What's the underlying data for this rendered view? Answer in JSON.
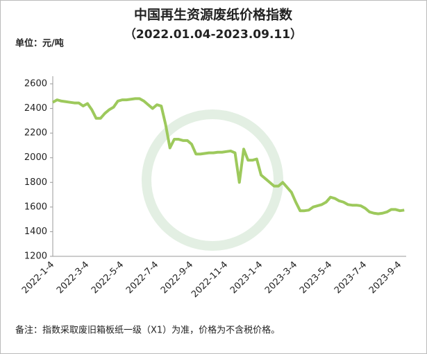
{
  "chart_data": {
    "type": "line",
    "title": "中国再生资源废纸价格指数",
    "subtitle": "（2022.01.04-2023.09.11）",
    "unit_label": "单位：元/吨",
    "note": "备注：指数采取废旧箱板纸一级（X1）为准，价格为不含税价格。",
    "categories": [
      "2022-1-4",
      null,
      null,
      null,
      null,
      null,
      null,
      null,
      "2022-3-4",
      null,
      null,
      null,
      null,
      null,
      null,
      null,
      "2022-5-4",
      null,
      null,
      null,
      null,
      null,
      null,
      null,
      "2022-7-4",
      null,
      null,
      null,
      null,
      null,
      null,
      null,
      "2022-9-4",
      null,
      null,
      null,
      null,
      null,
      null,
      null,
      "2022-11-4",
      null,
      null,
      null,
      null,
      null,
      null,
      null,
      "2023-1-4",
      null,
      null,
      null,
      null,
      null,
      null,
      null,
      "2023-3-4",
      null,
      null,
      null,
      null,
      null,
      null,
      null,
      "2023-5-4",
      null,
      null,
      null,
      null,
      null,
      null,
      null,
      "2023-7-4",
      null,
      null,
      null,
      null,
      null,
      null,
      null,
      "2023-9-4",
      null
    ],
    "series": [
      {
        "color": "#9dc95c",
        "values": [
          2450,
          2470,
          2460,
          2455,
          2450,
          2445,
          2445,
          2420,
          2440,
          2390,
          2320,
          2320,
          2360,
          2390,
          2410,
          2460,
          2470,
          2470,
          2475,
          2480,
          2480,
          2460,
          2430,
          2400,
          2430,
          2420,
          2270,
          2080,
          2150,
          2150,
          2140,
          2140,
          2110,
          2030,
          2030,
          2035,
          2040,
          2040,
          2045,
          2045,
          2050,
          2055,
          2040,
          1800,
          2070,
          1980,
          1980,
          1990,
          1860,
          1830,
          1800,
          1770,
          1770,
          1800,
          1760,
          1720,
          1640,
          1570,
          1570,
          1575,
          1600,
          1610,
          1620,
          1640,
          1680,
          1670,
          1650,
          1640,
          1620,
          1615,
          1615,
          1610,
          1590,
          1560,
          1550,
          1545,
          1550,
          1560,
          1580,
          1580,
          1570,
          1575
        ]
      }
    ],
    "ylim": [
      1200,
      2600
    ],
    "yticks": [
      1200,
      1400,
      1600,
      1800,
      2000,
      2200,
      2400,
      2600
    ],
    "grid": false
  }
}
